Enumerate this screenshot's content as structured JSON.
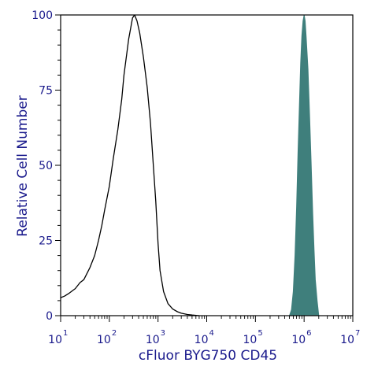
{
  "chart_data": {
    "type": "area",
    "title": "",
    "xlabel": "cFluor BYG750 CD45",
    "ylabel": "Relative Cell Number",
    "x_scale": "log10",
    "xlim": [
      10,
      10000000
    ],
    "ylim": [
      0,
      100
    ],
    "grid": false,
    "legend": "none",
    "x_ticks": [
      {
        "value": 10,
        "base": "10",
        "exp": "1"
      },
      {
        "value": 100,
        "base": "10",
        "exp": "2"
      },
      {
        "value": 1000,
        "base": "10",
        "exp": "3"
      },
      {
        "value": 10000,
        "base": "10",
        "exp": "4"
      },
      {
        "value": 100000,
        "base": "10",
        "exp": "5"
      },
      {
        "value": 1000000,
        "base": "10",
        "exp": "6"
      },
      {
        "value": 10000000,
        "base": "10",
        "exp": "7"
      }
    ],
    "y_ticks": [
      {
        "value": 0,
        "label": "0"
      },
      {
        "value": 25,
        "label": "25"
      },
      {
        "value": 50,
        "label": "50"
      },
      {
        "value": 75,
        "label": "75"
      },
      {
        "value": 100,
        "label": "100"
      }
    ],
    "colors": {
      "axis_text": "#1a1a8c",
      "axis_line": "#000000",
      "unstained_line": "#000000",
      "stained_fill": "#3f7f7c"
    },
    "series": [
      {
        "style": "open-outline",
        "points": [
          [
            10,
            6
          ],
          [
            12,
            6.5
          ],
          [
            15,
            7.5
          ],
          [
            20,
            9
          ],
          [
            25,
            11
          ],
          [
            30,
            12
          ],
          [
            40,
            16
          ],
          [
            50,
            20
          ],
          [
            60,
            25
          ],
          [
            70,
            30
          ],
          [
            80,
            35
          ],
          [
            100,
            43
          ],
          [
            120,
            52
          ],
          [
            150,
            62
          ],
          [
            180,
            72
          ],
          [
            200,
            80
          ],
          [
            250,
            92
          ],
          [
            300,
            99
          ],
          [
            330,
            100
          ],
          [
            370,
            98
          ],
          [
            420,
            94
          ],
          [
            500,
            86
          ],
          [
            600,
            76
          ],
          [
            700,
            64
          ],
          [
            800,
            50
          ],
          [
            900,
            38
          ],
          [
            1000,
            24
          ],
          [
            1100,
            15
          ],
          [
            1300,
            8
          ],
          [
            1600,
            4
          ],
          [
            2000,
            2.2
          ],
          [
            2500,
            1.3
          ],
          [
            3000,
            0.8
          ],
          [
            4000,
            0.4
          ],
          [
            5000,
            0.2
          ],
          [
            7000,
            0
          ]
        ]
      },
      {
        "style": "filled",
        "points": [
          [
            500000,
            0
          ],
          [
            550000,
            2
          ],
          [
            600000,
            8
          ],
          [
            650000,
            20
          ],
          [
            700000,
            36
          ],
          [
            750000,
            54
          ],
          [
            800000,
            70
          ],
          [
            850000,
            84
          ],
          [
            900000,
            93
          ],
          [
            950000,
            98
          ],
          [
            1000000,
            100
          ],
          [
            1050000,
            98
          ],
          [
            1100000,
            93
          ],
          [
            1200000,
            82
          ],
          [
            1300000,
            66
          ],
          [
            1400000,
            50
          ],
          [
            1500000,
            34
          ],
          [
            1600000,
            22
          ],
          [
            1700000,
            12
          ],
          [
            1850000,
            5
          ],
          [
            2000000,
            0
          ]
        ]
      }
    ]
  }
}
